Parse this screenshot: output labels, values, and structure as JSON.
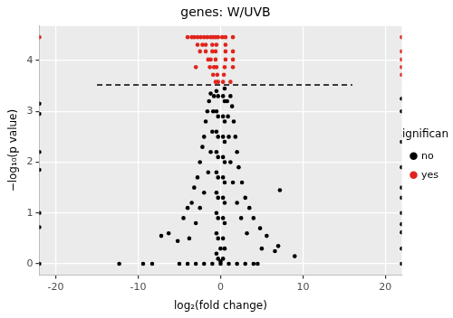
{
  "chart_data": {
    "type": "scatter",
    "title": "genes: W/UVB",
    "x_label": "log₂(fold change)",
    "y_label": "−log₁₀(p value)",
    "legend": "right",
    "legend_title": "significant",
    "grid": true,
    "marker": "circle",
    "xlim": [
      -22,
      22
    ],
    "xticks": [
      -20,
      -10,
      0,
      10,
      20
    ],
    "ylim": [
      -0.22,
      4.68
    ],
    "yticks": [
      0,
      1,
      2,
      3,
      4
    ],
    "threshold_line": {
      "x": [
        -15,
        16
      ],
      "values": [
        3.52,
        3.52
      ],
      "color": "#000000",
      "line_style": "dashed"
    },
    "series": [
      {
        "name": "no",
        "color": "#000000",
        "x": [
          -22,
          -22,
          -22,
          -22,
          -22,
          -22,
          -22,
          22,
          22,
          22,
          22,
          22,
          22,
          22,
          22,
          22,
          22,
          22,
          -12.3,
          -9.4,
          -8.3,
          -7.2,
          -6.3,
          -5.2,
          9.0,
          7.2,
          6.6,
          7.0,
          5.6,
          4.8,
          5.0,
          -5,
          -4,
          -3,
          -2,
          -1,
          0,
          1,
          2,
          3,
          4,
          4.5,
          -4.5,
          -4,
          -3.5,
          -3.2,
          -2.8,
          -2.5,
          -2.2,
          -2,
          -1.8,
          -1.6,
          -1.4,
          -1.2,
          -3.8,
          -3,
          -2.5,
          -2,
          -1.5,
          -1.2,
          -1,
          -0.9,
          -0.8,
          4,
          3.5,
          3,
          2.6,
          2.2,
          2,
          1.8,
          1.6,
          1.4,
          1.2,
          3.2,
          2.5,
          2,
          1.5,
          1.2,
          1,
          0.9,
          0.8,
          -0.5,
          -0.5,
          -0.5,
          -0.5,
          -0.5,
          -0.5,
          -0.5,
          -0.5,
          -0.5,
          -0.3,
          -0.3,
          -0.3,
          -0.3,
          -0.3,
          -0.3,
          -0.3,
          -0.3,
          -0.3,
          0.3,
          0.3,
          0.3,
          0.3,
          0.3,
          0.3,
          0.3,
          0.3,
          0.3,
          0.5,
          0.5,
          0.5,
          0.5,
          0.5,
          0.5,
          0.5,
          0.5,
          0.5,
          0,
          0
        ],
        "values": [
          0,
          0.72,
          1.0,
          1.85,
          2.2,
          2.95,
          3.15,
          0,
          0.3,
          0.62,
          0.78,
          1.0,
          1.3,
          1.5,
          1.9,
          2.4,
          3.0,
          3.25,
          0,
          0,
          0,
          0.55,
          0.6,
          0.45,
          0.15,
          1.45,
          0.25,
          0.35,
          0.55,
          0.7,
          0.3,
          0,
          0,
          0,
          0,
          0,
          0,
          0,
          0,
          0,
          0,
          0,
          0.9,
          1.1,
          1.2,
          1.5,
          1.7,
          2.0,
          2.3,
          2.5,
          2.8,
          3.0,
          3.2,
          3.35,
          0.5,
          0.8,
          1.1,
          1.4,
          1.8,
          2.2,
          2.6,
          3.0,
          3.3,
          0.9,
          1.1,
          1.3,
          1.6,
          1.9,
          2.2,
          2.5,
          2.8,
          3.1,
          3.3,
          0.6,
          0.9,
          1.2,
          1.6,
          2.0,
          2.5,
          2.9,
          3.2,
          0.2,
          0.6,
          1.0,
          1.4,
          1.8,
          2.2,
          2.6,
          3.0,
          3.4,
          0.1,
          0.5,
          0.9,
          1.3,
          1.7,
          2.1,
          2.5,
          2.9,
          3.3,
          0.1,
          0.5,
          0.9,
          1.3,
          1.7,
          2.1,
          2.5,
          2.9,
          3.3,
          0.3,
          0.8,
          1.2,
          1.6,
          2.0,
          2.4,
          2.8,
          3.2,
          3.45,
          0.05,
          0.3
        ]
      },
      {
        "name": "yes",
        "color": "#e0241b",
        "x": [
          -4.0,
          -3.5,
          -3.2,
          -2.8,
          -2.4,
          -2.0,
          -1.6,
          -1.2,
          -0.9,
          -0.6,
          -0.3,
          0.2,
          0.6,
          1.5,
          -22,
          22,
          -2.8,
          -2.2,
          -1.8,
          -1.0,
          -0.5,
          0.6,
          -2.5,
          -1.8,
          -1.0,
          -0.6,
          0.6,
          1.5,
          22,
          -1.5,
          -1.2,
          -0.6,
          0.6,
          1.5,
          22,
          -3.0,
          -1.3,
          -0.8,
          -0.5,
          0.5,
          1.5,
          22,
          -0.9,
          -0.4,
          0.4,
          22,
          -0.6,
          -0.3,
          0.3,
          1.2
        ],
        "values": [
          4.46,
          4.46,
          4.46,
          4.46,
          4.46,
          4.46,
          4.46,
          4.46,
          4.46,
          4.46,
          4.46,
          4.46,
          4.46,
          4.46,
          4.46,
          4.46,
          4.31,
          4.31,
          4.31,
          4.31,
          4.31,
          4.31,
          4.18,
          4.18,
          4.18,
          4.18,
          4.18,
          4.18,
          4.18,
          4.02,
          4.02,
          4.02,
          4.02,
          4.02,
          4.02,
          3.87,
          3.87,
          3.87,
          3.87,
          3.87,
          3.87,
          3.87,
          3.72,
          3.72,
          3.72,
          3.72,
          3.58,
          3.58,
          3.58,
          3.58
        ]
      }
    ]
  }
}
